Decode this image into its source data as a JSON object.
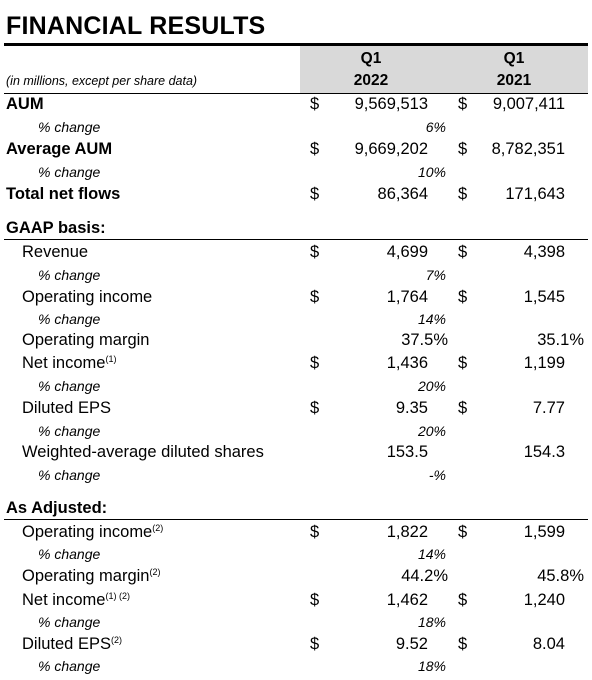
{
  "title": "FINANCIAL RESULTS",
  "header": {
    "note": "(in millions, except per share data)",
    "col1_q": "Q1",
    "col1_year": "2022",
    "col2_q": "Q1",
    "col2_year": "2021"
  },
  "currency": "$",
  "top_rows": [
    {
      "label": "AUM",
      "v2022": "9,569,513",
      "v2021": "9,007,411",
      "pct_label": "% change",
      "pct": "6%"
    },
    {
      "label": "Average AUM",
      "v2022": "9,669,202",
      "v2021": "8,782,351",
      "pct_label": "% change",
      "pct": "10%"
    },
    {
      "label": "Total net flows",
      "v2022": "86,364",
      "v2021": "171,643"
    }
  ],
  "gaap": {
    "heading": "GAAP basis:",
    "rows": [
      {
        "label": "Revenue",
        "v2022": "4,699",
        "v2021": "4,398",
        "pct_label": "% change",
        "pct": "7%"
      },
      {
        "label": "Operating income",
        "v2022": "1,764",
        "v2021": "1,545",
        "pct_label": "% change",
        "pct": "14%"
      },
      {
        "label": "Operating margin",
        "v2022": "37.5%",
        "v2021": "35.1%"
      },
      {
        "label": "Net income",
        "sup": "(1)",
        "v2022": "1,436",
        "v2021": "1,199",
        "pct_label": "% change",
        "pct": "20%"
      },
      {
        "label": "Diluted EPS",
        "v2022": "9.35",
        "v2021": "7.77",
        "pct_label": "% change",
        "pct": "20%"
      },
      {
        "label": "Weighted-average diluted shares",
        "v2022": "153.5",
        "v2021": "154.3",
        "pct_label": "% change",
        "pct": "-%"
      }
    ]
  },
  "adjusted": {
    "heading": "As Adjusted:",
    "rows": [
      {
        "label": "Operating income",
        "sup": "(2)",
        "v2022": "1,822",
        "v2021": "1,599",
        "pct_label": "% change",
        "pct": "14%"
      },
      {
        "label": "Operating margin",
        "sup": "(2)",
        "v2022": "44.2%",
        "v2021": "45.8%"
      },
      {
        "label": "Net income",
        "sup": "(1) (2)",
        "v2022": "1,462",
        "v2021": "1,240",
        "pct_label": "% change",
        "pct": "18%"
      },
      {
        "label": "Diluted EPS",
        "sup": "(2)",
        "v2022": "9.52",
        "v2021": "8.04",
        "pct_label": "% change",
        "pct": "18%"
      }
    ]
  }
}
